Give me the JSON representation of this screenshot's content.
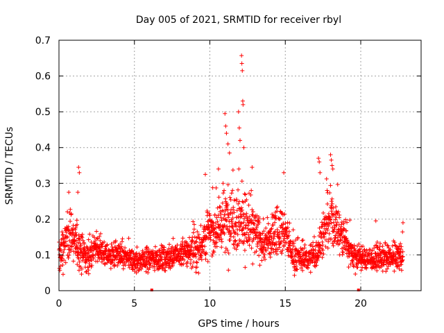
{
  "chart_data": {
    "type": "scatter",
    "title": "Day 005 of 2021, SRMTID for receiver rbyl",
    "xlabel": "GPS time / hours",
    "ylabel": "SRMTID / TECUs",
    "xlim": [
      0,
      24
    ],
    "ylim": [
      0,
      0.7
    ],
    "x_ticks": [
      0,
      5,
      10,
      15,
      20
    ],
    "x_tick_labels": [
      "0",
      "5",
      "10",
      "15",
      "20"
    ],
    "y_ticks": [
      0,
      0.1,
      0.2,
      0.3,
      0.4,
      0.5,
      0.6,
      0.7
    ],
    "y_tick_labels": [
      "0",
      "0.1",
      "0.2",
      "0.3",
      "0.4",
      "0.5",
      "0.6",
      "0.7"
    ],
    "grid": true,
    "marker": "plus",
    "series": [
      {
        "name": "SRMTID",
        "color": "#ff0000",
        "approx_points": 2200,
        "envelope": {
          "x": [
            0,
            0.3,
            0.6,
            0.9,
            1.3,
            1.8,
            2.5,
            3.0,
            4.0,
            5.0,
            6.0,
            7.0,
            8.0,
            8.6,
            9.3,
            9.8,
            10.3,
            11.0,
            11.5,
            12.0,
            12.5,
            13.0,
            13.5,
            14.0,
            14.5,
            15.0,
            15.5,
            16.0,
            16.5,
            17.0,
            17.5,
            18.0,
            18.5,
            19.0,
            19.5,
            20.0,
            20.5,
            21.0,
            22.0,
            22.8
          ],
          "mean": [
            0.09,
            0.12,
            0.16,
            0.15,
            0.12,
            0.09,
            0.12,
            0.1,
            0.1,
            0.08,
            0.09,
            0.09,
            0.1,
            0.11,
            0.12,
            0.16,
            0.17,
            0.19,
            0.21,
            0.2,
            0.18,
            0.16,
            0.13,
            0.14,
            0.18,
            0.16,
            0.1,
            0.09,
            0.09,
            0.1,
            0.16,
            0.2,
            0.17,
            0.14,
            0.1,
            0.09,
            0.09,
            0.09,
            0.09,
            0.1
          ],
          "spread": [
            0.04,
            0.05,
            0.06,
            0.06,
            0.05,
            0.04,
            0.04,
            0.03,
            0.03,
            0.03,
            0.03,
            0.03,
            0.03,
            0.04,
            0.05,
            0.06,
            0.06,
            0.08,
            0.09,
            0.09,
            0.07,
            0.06,
            0.05,
            0.05,
            0.06,
            0.05,
            0.04,
            0.03,
            0.03,
            0.04,
            0.06,
            0.07,
            0.06,
            0.05,
            0.04,
            0.03,
            0.03,
            0.03,
            0.03,
            0.04
          ]
        },
        "outliers": [
          {
            "x": 0.65,
            "y": 0.275
          },
          {
            "x": 1.3,
            "y": 0.345
          },
          {
            "x": 1.35,
            "y": 0.33
          },
          {
            "x": 1.25,
            "y": 0.275
          },
          {
            "x": 9.7,
            "y": 0.325
          },
          {
            "x": 11.0,
            "y": 0.495
          },
          {
            "x": 11.05,
            "y": 0.46
          },
          {
            "x": 11.1,
            "y": 0.44
          },
          {
            "x": 11.2,
            "y": 0.41
          },
          {
            "x": 11.3,
            "y": 0.385
          },
          {
            "x": 11.9,
            "y": 0.5
          },
          {
            "x": 11.95,
            "y": 0.455
          },
          {
            "x": 12.0,
            "y": 0.42
          },
          {
            "x": 12.1,
            "y": 0.657
          },
          {
            "x": 12.12,
            "y": 0.635
          },
          {
            "x": 12.15,
            "y": 0.615
          },
          {
            "x": 12.18,
            "y": 0.53
          },
          {
            "x": 12.2,
            "y": 0.52
          },
          {
            "x": 12.25,
            "y": 0.4
          },
          {
            "x": 12.8,
            "y": 0.345
          },
          {
            "x": 14.9,
            "y": 0.33
          },
          {
            "x": 17.2,
            "y": 0.37
          },
          {
            "x": 17.25,
            "y": 0.36
          },
          {
            "x": 17.3,
            "y": 0.33
          },
          {
            "x": 18.0,
            "y": 0.38
          },
          {
            "x": 18.05,
            "y": 0.365
          },
          {
            "x": 18.1,
            "y": 0.35
          },
          {
            "x": 18.15,
            "y": 0.34
          },
          {
            "x": 21.0,
            "y": 0.195
          },
          {
            "x": 22.8,
            "y": 0.19
          }
        ],
        "zero_markers": [
          {
            "x": 6.15,
            "y": 0
          },
          {
            "x": 19.85,
            "y": 0
          }
        ]
      }
    ]
  }
}
